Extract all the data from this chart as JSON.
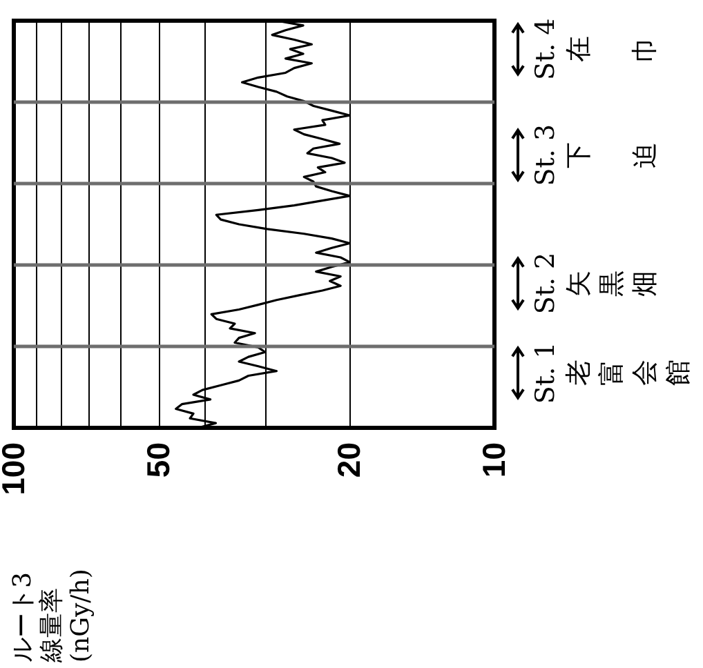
{
  "chart_data": {
    "type": "line",
    "orientation": "horizontal",
    "title": "ルート3\n線量率\n(nGy/h)",
    "categories": [
      null,
      null,
      null,
      null,
      null,
      null,
      null,
      null,
      null,
      null,
      null,
      null,
      null,
      null,
      null,
      null,
      null,
      null,
      null,
      null,
      null,
      null,
      null,
      null,
      null,
      null,
      null,
      null,
      null,
      null,
      null,
      null,
      null,
      null,
      null,
      null,
      null,
      null,
      null,
      null,
      null,
      null,
      null,
      null,
      null,
      null,
      null,
      null,
      null,
      null,
      null,
      null,
      null,
      null,
      null,
      null,
      null,
      null,
      null,
      null,
      null,
      null,
      null,
      null,
      null,
      null,
      null,
      null,
      null,
      null,
      null,
      null,
      null,
      null,
      null,
      null,
      null,
      null,
      null,
      null,
      null,
      null,
      null,
      null,
      null,
      null,
      null
    ],
    "series": [
      {
        "color": "#000000",
        "values": [
          28.4,
          25,
          27.2,
          29,
          26.1,
          24,
          26.6,
          25,
          27.2,
          24,
          26.1,
          27.2,
          31,
          33.5,
          31,
          28.4,
          27,
          24.9,
          23.8,
          21.8,
          20,
          22.8,
          22.5,
          26.1,
          24.9,
          22.8,
          21,
          23.8,
          24.5,
          21.8,
          20.5,
          23.3,
          22.5,
          24.9,
          23.8,
          23.5,
          21.8,
          20,
          22.8,
          26.1,
          31,
          37.9,
          37.1,
          34,
          29.7,
          24.9,
          21.8,
          20,
          21.8,
          23.5,
          20.9,
          20,
          21.8,
          23.5,
          20.9,
          22,
          20.9,
          22.8,
          25.5,
          28.4,
          31,
          34,
          38.8,
          37.9,
          34.7,
          35.5,
          31.5,
          34,
          34.7,
          31,
          30,
          32.5,
          34,
          31,
          28.4,
          32.5,
          34,
          37.1,
          40.5,
          42.3,
          39,
          44.7,
          46,
          42.3,
          43,
          38,
          41.4
        ]
      }
    ],
    "log": "x",
    "xlim": [
      100,
      10
    ],
    "xticks": [
      100,
      {
        "value": 90,
        "label": null
      },
      {
        "value": 80,
        "label": null
      },
      {
        "value": 70,
        "label": null
      },
      {
        "value": 60,
        "label": null
      },
      50,
      {
        "value": 40,
        "label": null
      },
      {
        "value": 30,
        "label": null
      },
      20,
      10
    ],
    "annotations": [
      "St. 4\n在巾",
      "St. 3\n下迫",
      "St. 2\n矢黒畑",
      "St. 1\n老富会館"
    ],
    "grid": true
  }
}
